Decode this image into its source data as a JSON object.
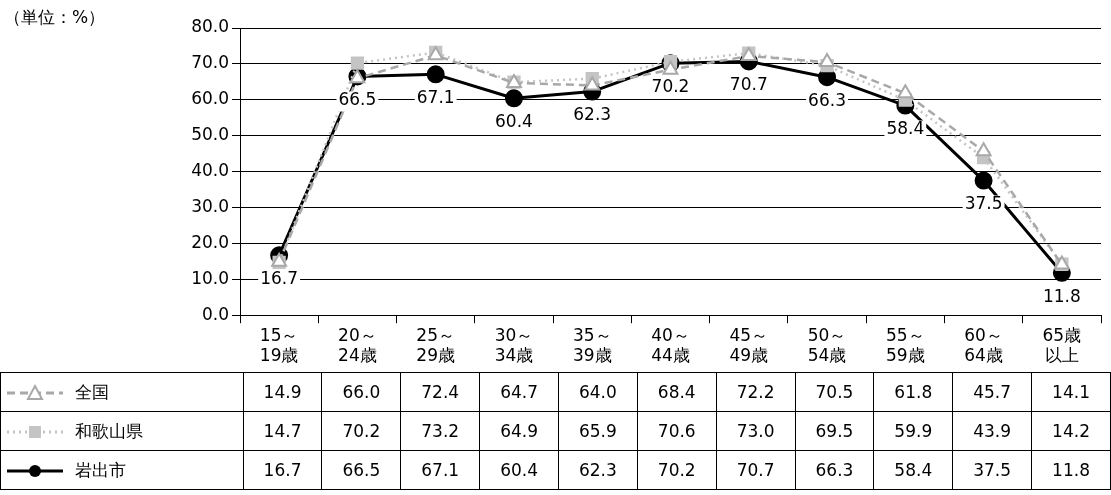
{
  "chart_data": {
    "type": "line",
    "annotations": [
      "（単位：%）"
    ],
    "categories": [
      "15～19歳",
      "20～24歳",
      "25～29歳",
      "30～34歳",
      "35～39歳",
      "40～44歳",
      "45～49歳",
      "50～54歳",
      "55～59歳",
      "60～64歳",
      "65歳以上"
    ],
    "series": [
      {
        "name": "全国",
        "color": "#a8a8a8",
        "marker": "triangle",
        "line_style": "dashed",
        "values": [
          14.9,
          66.0,
          72.4,
          64.7,
          64.0,
          68.4,
          72.2,
          70.5,
          61.8,
          45.7,
          14.1
        ],
        "value_labels": [
          "14.9",
          "66.0",
          "72.4",
          "64.7",
          "64.0",
          "68.4",
          "72.2",
          "70.5",
          "61.8",
          "45.7",
          "14.1"
        ]
      },
      {
        "name": "和歌山県",
        "color": "#c4c4c4",
        "marker": "square",
        "line_style": "dotted",
        "values": [
          14.7,
          70.2,
          73.2,
          64.9,
          65.9,
          70.6,
          73.0,
          69.5,
          59.9,
          43.9,
          14.2
        ],
        "value_labels": [
          "14.7",
          "70.2",
          "73.2",
          "64.9",
          "65.9",
          "70.6",
          "73.0",
          "69.5",
          "59.9",
          "43.9",
          "14.2"
        ]
      },
      {
        "name": "岩出市",
        "color": "#000000",
        "marker": "circle",
        "line_style": "solid",
        "values": [
          16.7,
          66.5,
          67.1,
          60.4,
          62.3,
          70.2,
          70.7,
          66.3,
          58.4,
          37.5,
          11.8
        ],
        "value_labels": [
          "16.7",
          "66.5",
          "67.1",
          "60.4",
          "62.3",
          "70.2",
          "70.7",
          "66.3",
          "58.4",
          "37.5",
          "11.8"
        ]
      }
    ],
    "ylim": [
      0,
      80
    ],
    "yticks": [
      {
        "value": 0,
        "label": "0.0"
      },
      {
        "value": 10,
        "label": "10.0"
      },
      {
        "value": 20,
        "label": "20.0"
      },
      {
        "value": 30,
        "label": "30.0"
      },
      {
        "value": 40,
        "label": "40.0"
      },
      {
        "value": 50,
        "label": "50.0"
      },
      {
        "value": 60,
        "label": "60.0"
      },
      {
        "value": 70,
        "label": "70.0"
      },
      {
        "value": 80,
        "label": "80.0"
      }
    ],
    "grid": "y",
    "legend": "bottom"
  }
}
